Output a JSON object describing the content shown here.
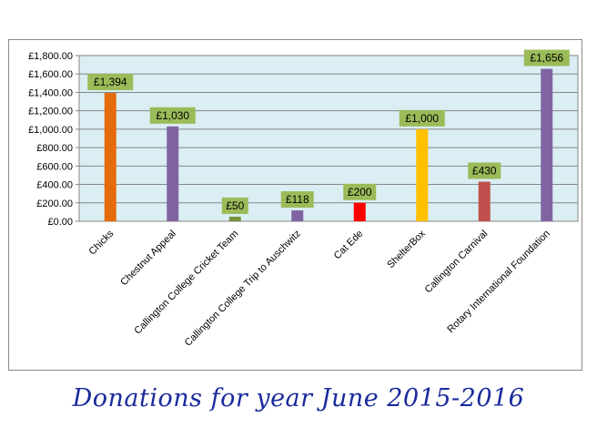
{
  "caption": "Donations for year June 2015-2016",
  "chart_data": {
    "type": "bar",
    "title": "",
    "xlabel": "",
    "ylabel": "",
    "ylim": [
      0,
      1800
    ],
    "yticks": [
      0,
      200,
      400,
      600,
      800,
      1000,
      1200,
      1400,
      1600,
      1800
    ],
    "ytick_labels": [
      "£0.00",
      "£200.00",
      "£400.00",
      "£600.00",
      "£800.00",
      "£1,000.00",
      "£1,200.00",
      "£1,400.00",
      "£1,600.00",
      "£1,800.00"
    ],
    "grid": true,
    "legend": "none",
    "plot_background": "#daeef3",
    "label_background": "#9bbb59",
    "categories": [
      "Chicks",
      "Chestnut Appeal",
      "Callington College Cricket Team",
      "Callington College Trip to Auschwitz",
      "Cat Ede",
      "ShelterBox",
      "Callington Carnival",
      "Rotary International Foundation"
    ],
    "values": [
      1394,
      1030,
      50,
      118,
      200,
      1000,
      430,
      1656
    ],
    "data_labels": [
      "£1,394",
      "£1,030",
      "£50",
      "£118",
      "£200",
      "£1,000",
      "£430",
      "£1,656"
    ],
    "colors": [
      "#e46c0a",
      "#8064a2",
      "#77933c",
      "#8064a2",
      "#ff0000",
      "#ffc000",
      "#c0504d",
      "#8064a2"
    ]
  }
}
